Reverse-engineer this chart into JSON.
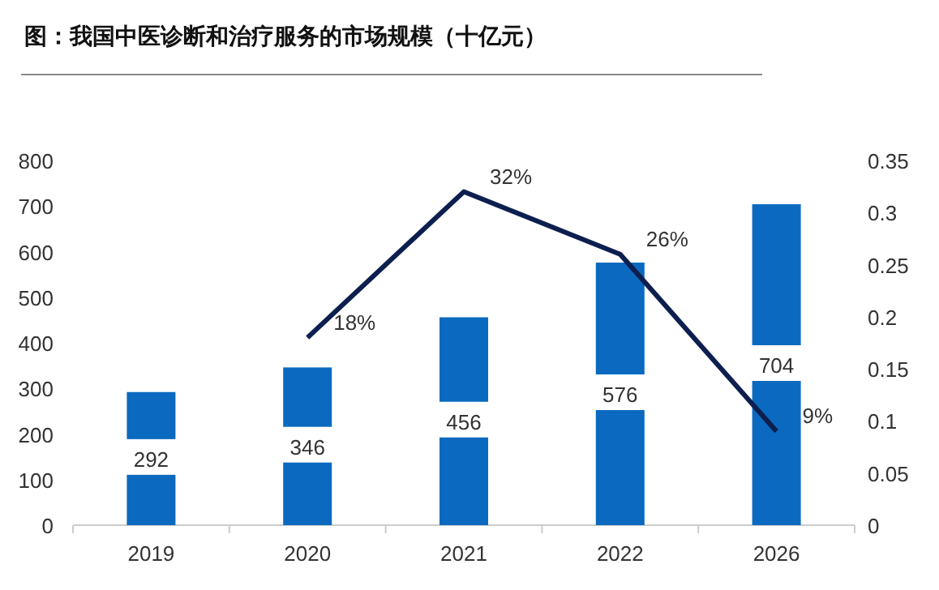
{
  "chart_data": {
    "type": "bar",
    "title": "图：我国中医诊断和治疗服务的市场规模（十亿元）",
    "categories": [
      "2019",
      "2020",
      "2021",
      "2022",
      "2026"
    ],
    "series": [
      {
        "color": "#0b6abf",
        "values": [
          292,
          346,
          456,
          576,
          704
        ],
        "value_labels": [
          "292",
          "346",
          "456",
          "576",
          "704"
        ]
      },
      {
        "type": "line",
        "axis": "y2",
        "color": "#0d1f4f",
        "values": [
          null,
          0.18,
          0.32,
          0.26,
          0.09
        ],
        "value_labels": [
          null,
          "18%",
          "32%",
          "26%",
          "9%"
        ]
      }
    ],
    "ylim": [
      0,
      800
    ],
    "yticks": [
      0,
      100,
      200,
      300,
      400,
      500,
      600,
      700,
      800
    ],
    "y2lim": [
      0,
      0.35
    ],
    "y2ticks": [
      0,
      0.05,
      0.1,
      0.15,
      0.2,
      0.25,
      0.3,
      0.35
    ],
    "grid": false
  }
}
